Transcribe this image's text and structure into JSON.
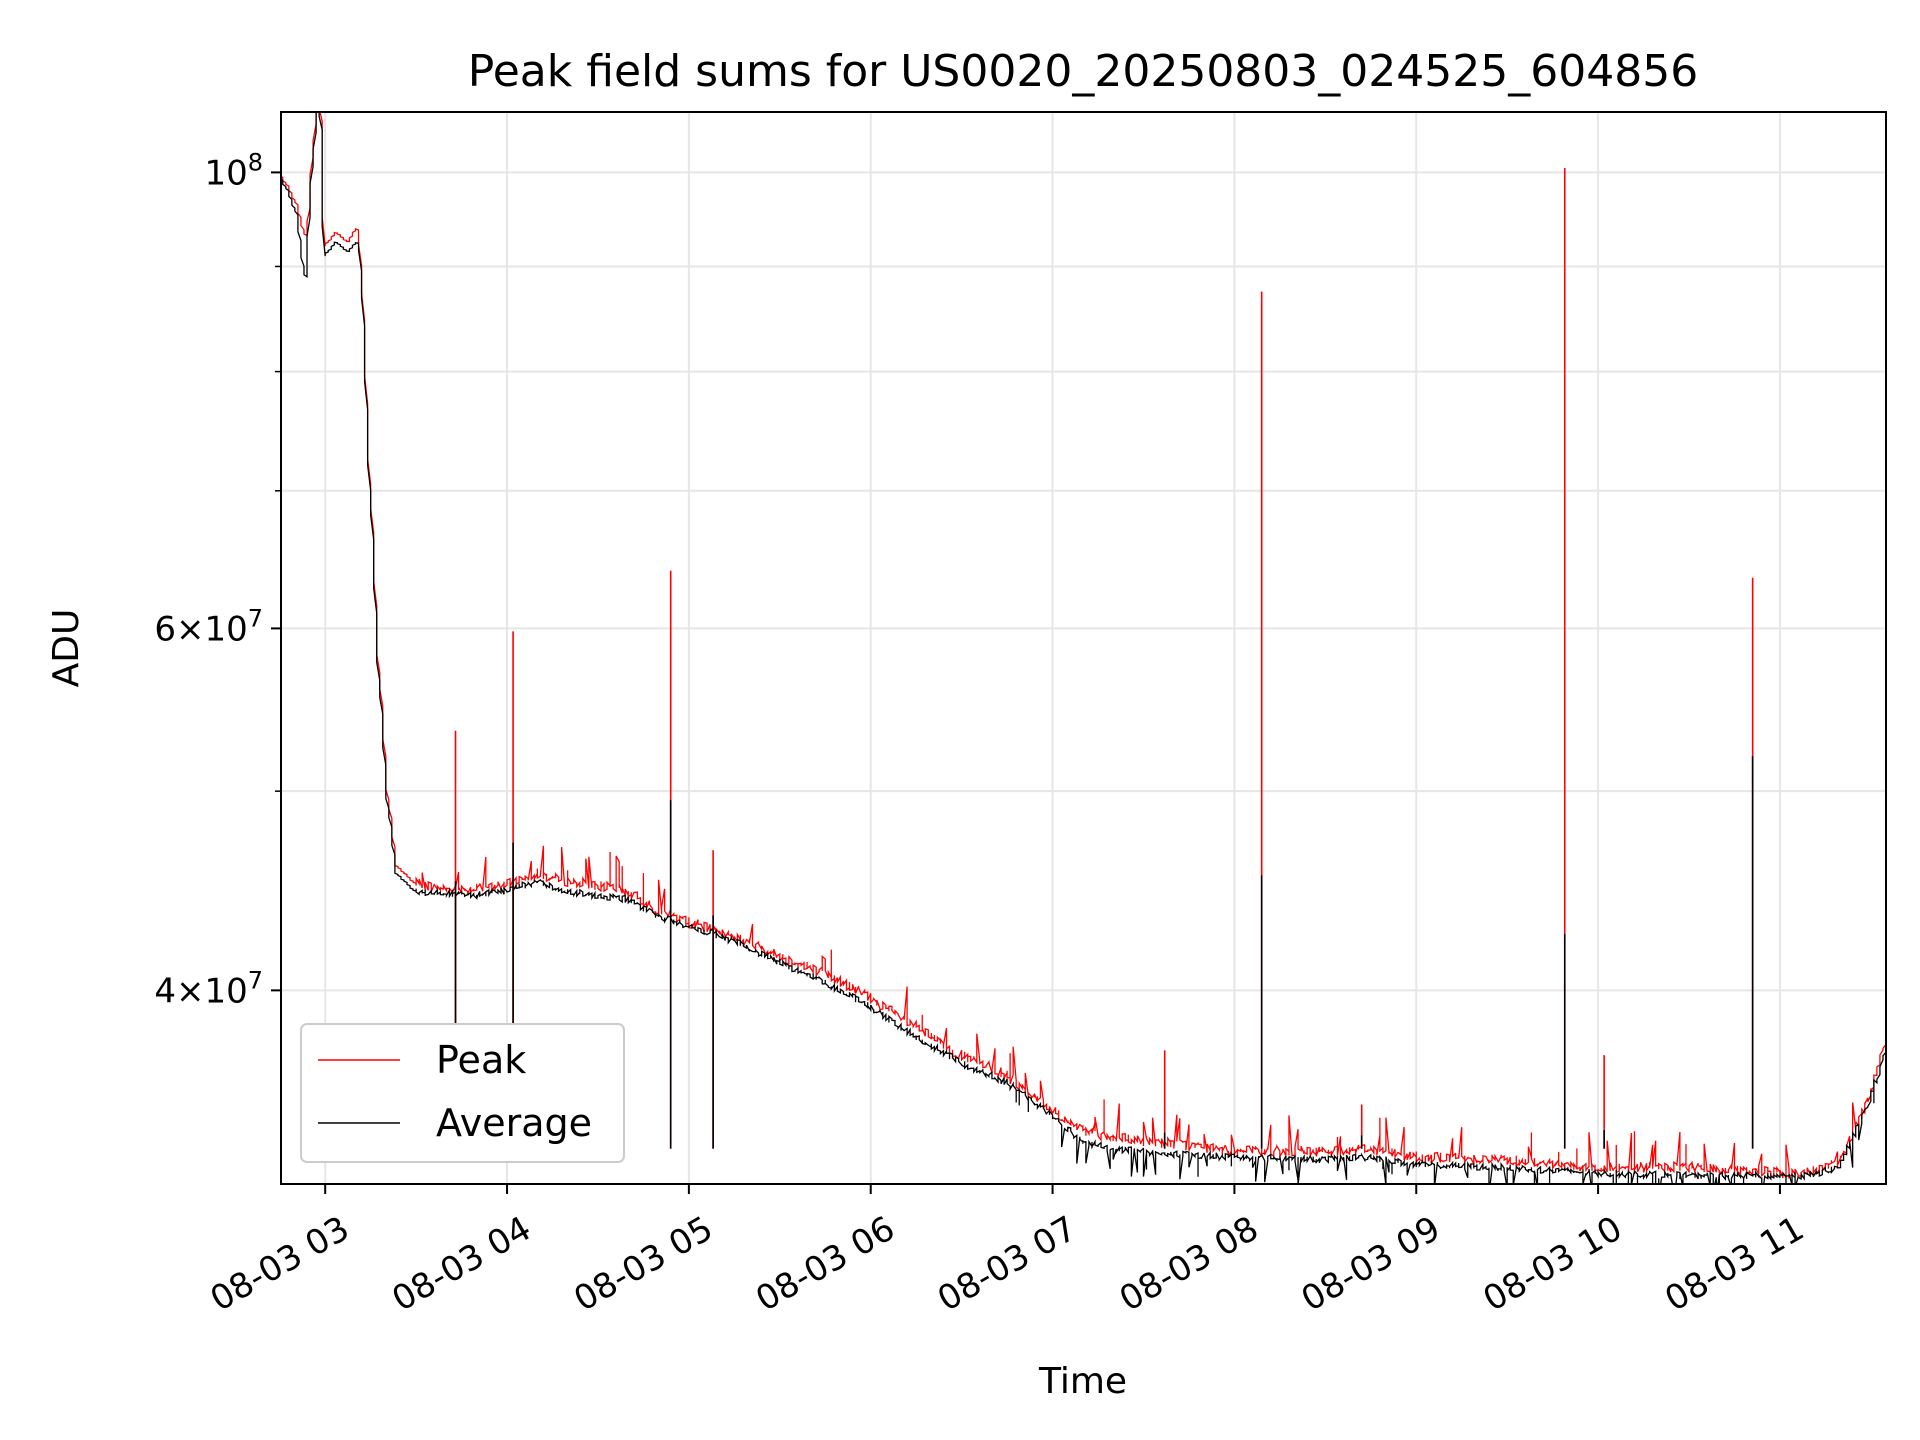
{
  "chart_data": {
    "type": "line",
    "title": "Peak field sums for US0020_20250803_024525_604856",
    "xlabel": "Time",
    "ylabel": "ADU",
    "x_unit": "hours of 2025-08-03",
    "xlim": [
      "2025-08-03 02:45:25",
      "2025-08-03 11:35:00"
    ],
    "ylim": [
      32200000,
      107000000
    ],
    "yscale": "log",
    "grid": true,
    "legend_position": "lower-left",
    "x_ticks": [
      {
        "value": "2025-08-03 03:00",
        "label": "08-03 03"
      },
      {
        "value": "2025-08-03 04:00",
        "label": "08-03 04"
      },
      {
        "value": "2025-08-03 05:00",
        "label": "08-03 05"
      },
      {
        "value": "2025-08-03 06:00",
        "label": "08-03 06"
      },
      {
        "value": "2025-08-03 07:00",
        "label": "08-03 07"
      },
      {
        "value": "2025-08-03 08:00",
        "label": "08-03 08"
      },
      {
        "value": "2025-08-03 09:00",
        "label": "08-03 09"
      },
      {
        "value": "2025-08-03 10:00",
        "label": "08-03 10"
      },
      {
        "value": "2025-08-03 11:00",
        "label": "08-03 11"
      }
    ],
    "y_ticks_major": [
      {
        "value": 40000000,
        "mant": "4",
        "exp": "7"
      },
      {
        "value": 60000000,
        "mant": "6",
        "exp": "7"
      },
      {
        "value": 100000000,
        "mant": "",
        "exp": "8"
      }
    ],
    "y_ticks_minor": [
      50000000,
      70000000,
      80000000,
      90000000
    ],
    "series": [
      {
        "name": "Peak",
        "color": "#ff0000",
        "x": [
          "2025-08-03 02:45",
          "2025-08-03 02:48",
          "2025-08-03 02:51",
          "2025-08-03 02:54",
          "2025-08-03 02:55",
          "2025-08-03 02:57",
          "2025-08-03 02:58",
          "2025-08-03 02:59",
          "2025-08-03 03:00",
          "2025-08-03 03:04",
          "2025-08-03 03:08",
          "2025-08-03 03:11",
          "2025-08-03 03:12",
          "2025-08-03 03:15",
          "2025-08-03 03:18",
          "2025-08-03 03:21",
          "2025-08-03 03:24",
          "2025-08-03 03:30",
          "2025-08-03 03:40",
          "2025-08-03 03:50",
          "2025-08-03 04:00",
          "2025-08-03 04:10",
          "2025-08-03 04:20",
          "2025-08-03 04:30",
          "2025-08-03 04:40",
          "2025-08-03 04:50",
          "2025-08-03 05:00",
          "2025-08-03 05:15",
          "2025-08-03 05:30",
          "2025-08-03 05:45",
          "2025-08-03 06:00",
          "2025-08-03 06:15",
          "2025-08-03 06:30",
          "2025-08-03 06:45",
          "2025-08-03 07:00",
          "2025-08-03 07:10",
          "2025-08-03 07:20",
          "2025-08-03 07:40",
          "2025-08-03 08:00",
          "2025-08-03 08:30",
          "2025-08-03 08:45",
          "2025-08-03 09:00",
          "2025-08-03 09:30",
          "2025-08-03 10:00",
          "2025-08-03 10:30",
          "2025-08-03 10:50",
          "2025-08-03 11:00",
          "2025-08-03 11:10",
          "2025-08-03 11:20",
          "2025-08-03 11:30",
          "2025-08-03 11:35"
        ],
        "values": [
          100000000,
          98500000,
          96500000,
          93000000,
          95000000,
          105000000,
          110000000,
          106000000,
          92000000,
          93500000,
          92500000,
          94000000,
          92000000,
          72000000,
          58000000,
          50000000,
          46000000,
          45100000,
          44800000,
          44800000,
          45000000,
          45600000,
          45200000,
          45000000,
          44700000,
          43800000,
          43200000,
          42500000,
          41600000,
          40800000,
          39700000,
          38400000,
          37200000,
          36400000,
          35000000,
          34200000,
          33900000,
          33700000,
          33400000,
          33400000,
          33500000,
          33200000,
          33100000,
          32800000,
          32800000,
          32700000,
          32600000,
          32600000,
          33000000,
          35500000,
          37500000
        ]
      },
      {
        "name": "Average",
        "color": "#000000",
        "x": [
          "2025-08-03 02:45",
          "2025-08-03 02:48",
          "2025-08-03 02:51",
          "2025-08-03 02:54",
          "2025-08-03 02:55",
          "2025-08-03 02:57",
          "2025-08-03 02:58",
          "2025-08-03 02:59",
          "2025-08-03 03:00",
          "2025-08-03 03:04",
          "2025-08-03 03:08",
          "2025-08-03 03:11",
          "2025-08-03 03:12",
          "2025-08-03 03:15",
          "2025-08-03 03:18",
          "2025-08-03 03:21",
          "2025-08-03 03:24",
          "2025-08-03 03:30",
          "2025-08-03 03:40",
          "2025-08-03 03:50",
          "2025-08-03 04:00",
          "2025-08-03 04:10",
          "2025-08-03 04:20",
          "2025-08-03 04:30",
          "2025-08-03 04:40",
          "2025-08-03 04:50",
          "2025-08-03 05:00",
          "2025-08-03 05:15",
          "2025-08-03 05:30",
          "2025-08-03 05:45",
          "2025-08-03 06:00",
          "2025-08-03 06:15",
          "2025-08-03 06:30",
          "2025-08-03 06:45",
          "2025-08-03 07:00",
          "2025-08-03 07:10",
          "2025-08-03 07:20",
          "2025-08-03 07:40",
          "2025-08-03 08:00",
          "2025-08-03 08:30",
          "2025-08-03 08:45",
          "2025-08-03 09:00",
          "2025-08-03 09:30",
          "2025-08-03 10:00",
          "2025-08-03 10:30",
          "2025-08-03 10:50",
          "2025-08-03 11:00",
          "2025-08-03 11:10",
          "2025-08-03 11:20",
          "2025-08-03 11:30",
          "2025-08-03 11:35"
        ],
        "values": [
          99800000,
          98000000,
          95500000,
          88500000,
          94000000,
          104000000,
          109000000,
          105000000,
          91000000,
          92500000,
          91500000,
          92500000,
          91500000,
          71500000,
          57500000,
          49500000,
          45600000,
          44700000,
          44600000,
          44500000,
          44700000,
          45200000,
          44700000,
          44500000,
          44300000,
          43500000,
          43000000,
          42300000,
          41300000,
          40400000,
          39300000,
          38000000,
          36900000,
          36100000,
          34800000,
          33800000,
          33500000,
          33300000,
          33200000,
          33100000,
          33200000,
          32900000,
          32800000,
          32600000,
          32500000,
          32500000,
          32500000,
          32500000,
          32800000,
          35300000,
          37200000
        ]
      }
    ],
    "spikes": [
      {
        "time": "2025-08-03 03:43",
        "peak": 53500000,
        "average": 45200000
      },
      {
        "time": "2025-08-03 04:02",
        "peak": 59800000,
        "average": 47200000
      },
      {
        "time": "2025-08-03 04:54",
        "peak": 64000000,
        "average": 49500000
      },
      {
        "time": "2025-08-03 05:08",
        "peak": 46800000,
        "average": 43500000
      },
      {
        "time": "2025-08-03 07:37",
        "peak": 37400000,
        "average": 34100000
      },
      {
        "time": "2025-08-03 08:09",
        "peak": 87500000,
        "average": 45500000
      },
      {
        "time": "2025-08-03 08:42",
        "peak": 35200000,
        "average": 34000000
      },
      {
        "time": "2025-08-03 09:49",
        "peak": 100500000,
        "average": 42600000
      },
      {
        "time": "2025-08-03 10:02",
        "peak": 37200000,
        "average": 34200000
      },
      {
        "time": "2025-08-03 10:51",
        "peak": 63500000,
        "average": 52000000
      }
    ]
  }
}
